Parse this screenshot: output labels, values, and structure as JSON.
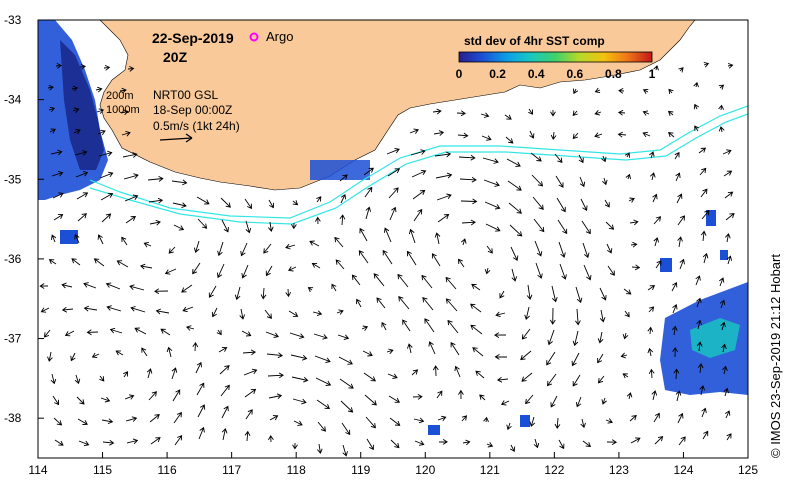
{
  "map": {
    "date": "22-Sep-2019",
    "hour": "20Z",
    "argo_label": "Argo",
    "contours": [
      "200m",
      "1000m"
    ],
    "product": "NRT00 GSL",
    "product_time": "18-Sep 00:00Z",
    "vector_scale": "0.5m/s (1kt 24h)",
    "colorbar_title": "std dev of 4hr SST comp",
    "colorbar_ticks": [
      "0",
      "0.2",
      "0.4",
      "0.6",
      "0.8",
      "1"
    ],
    "credit": "© IMOS 23-Sep-2019 21:12 Hobart",
    "lon_ticks": [
      "114",
      "115",
      "116",
      "117",
      "118",
      "119",
      "120",
      "121",
      "122",
      "123",
      "124",
      "125"
    ],
    "lat_ticks": [
      "-33",
      "-34",
      "-35",
      "-36",
      "-37",
      "-38"
    ],
    "lon_range": [
      114,
      125
    ],
    "lat_range": [
      -38.5,
      -33
    ],
    "colors": {
      "land": "#f9c99a",
      "contour_lines": "#33e6e6",
      "argo_marker": "#ff00ff",
      "sst_low": "#1a2a8c",
      "sst_mid": "#00a0e0",
      "sst_high": "#e02020"
    }
  }
}
